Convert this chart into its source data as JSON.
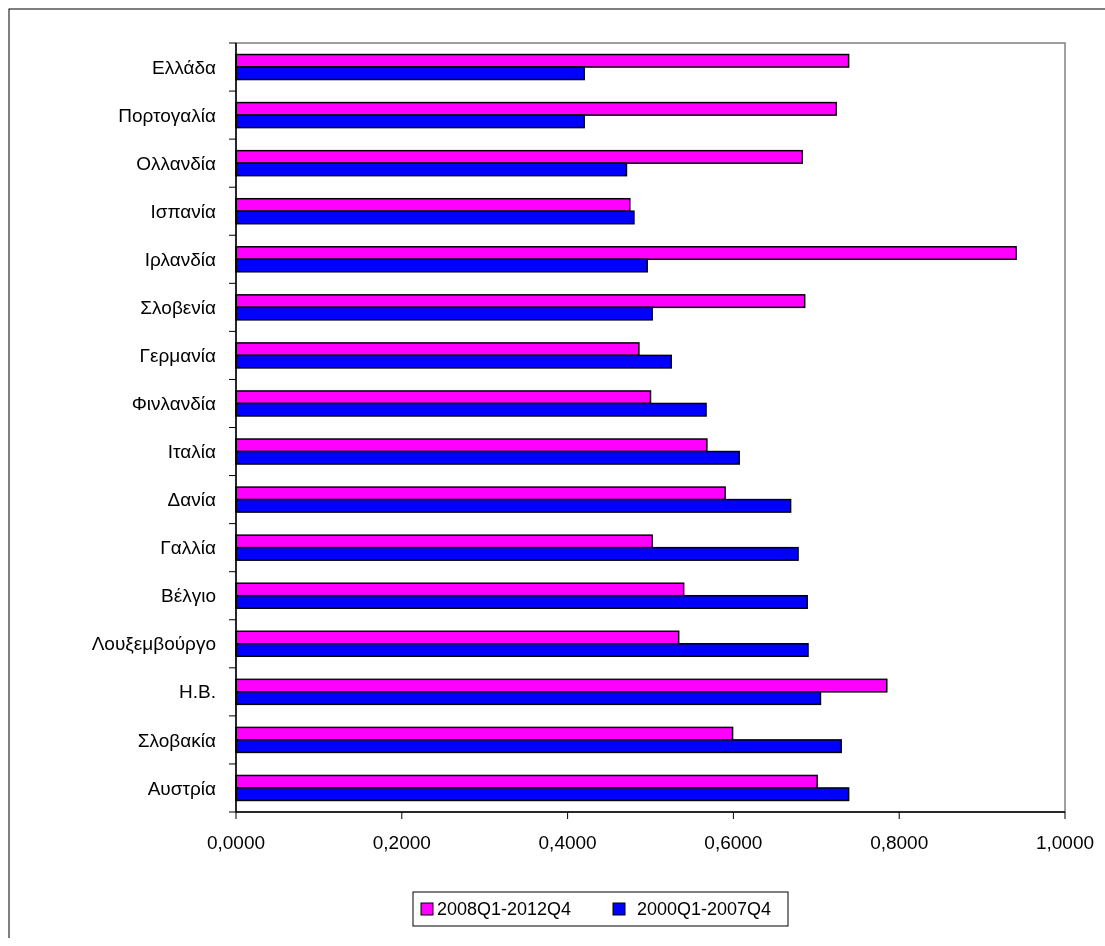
{
  "chart_data": {
    "type": "bar",
    "orientation": "horizontal",
    "categories": [
      "Ελλάδα",
      "Πορτογαλία",
      "Ολλανδία",
      "Ισπανία",
      "Ιρλανδία",
      "Σλοβενία",
      "Γερμανία",
      "Φινλανδία",
      "Ιταλία",
      "Δανία",
      "Γαλλία",
      "Βέλγιο",
      "Λουξεμβούργο",
      "Η.Β.",
      "Σλοβακία",
      "Αυστρία"
    ],
    "series": [
      {
        "name": "2008Q1-2012Q4",
        "color": "#ff00ff",
        "values": [
          0.739,
          0.724,
          0.683,
          0.475,
          0.941,
          0.686,
          0.486,
          0.5,
          0.568,
          0.59,
          0.502,
          0.54,
          0.534,
          0.785,
          0.599,
          0.701
        ]
      },
      {
        "name": "2000Q1-2007Q4",
        "color": "#0000ff",
        "values": [
          0.42,
          0.42,
          0.471,
          0.48,
          0.496,
          0.502,
          0.525,
          0.567,
          0.607,
          0.669,
          0.678,
          0.689,
          0.69,
          0.705,
          0.73,
          0.739
        ]
      }
    ],
    "xlim": [
      0,
      1
    ],
    "xticks": [
      {
        "value": 0,
        "label": "0,0000"
      },
      {
        "value": 0.2,
        "label": "0,2000"
      },
      {
        "value": 0.4,
        "label": "0,4000"
      },
      {
        "value": 0.6,
        "label": "0,6000"
      },
      {
        "value": 0.8,
        "label": "0,8000"
      },
      {
        "value": 1,
        "label": "1,0000"
      }
    ],
    "legend": "bottom"
  }
}
